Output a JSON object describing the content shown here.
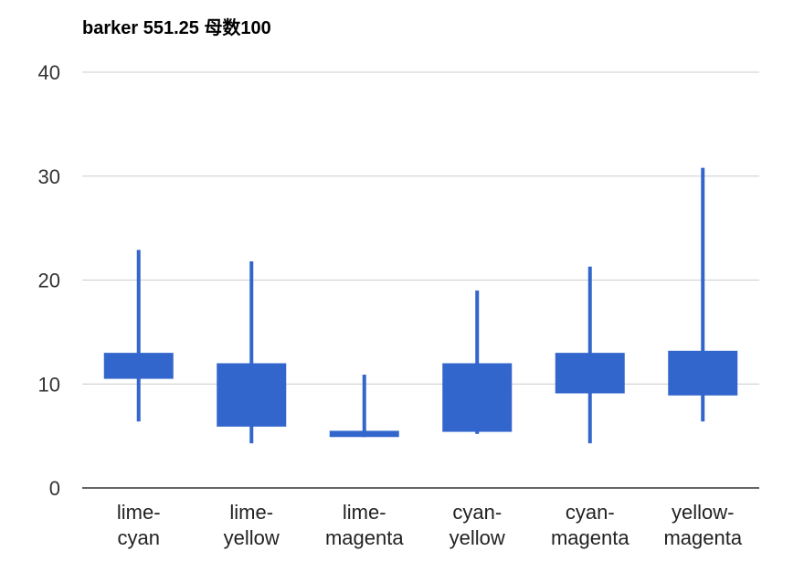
{
  "chart_data": {
    "type": "candlestick",
    "title": "barker 551.25 母数100",
    "xlabel": "",
    "ylabel": "",
    "ylim": [
      0,
      40
    ],
    "yticks": [
      0,
      10,
      20,
      30,
      40
    ],
    "grid": true,
    "legend": "none",
    "color": "#3366cc",
    "categories": [
      [
        "lime-",
        "cyan"
      ],
      [
        "lime-",
        "yellow"
      ],
      [
        "lime-",
        "magenta"
      ],
      [
        "cyan-",
        "yellow"
      ],
      [
        "cyan-",
        "magenta"
      ],
      [
        "yellow-",
        "magenta"
      ]
    ],
    "candles": [
      {
        "low": 6.4,
        "open": 10.5,
        "close": 13.0,
        "high": 22.9
      },
      {
        "low": 4.3,
        "open": 5.9,
        "close": 12.0,
        "high": 21.8
      },
      {
        "low": 4.9,
        "open": 4.9,
        "close": 5.5,
        "high": 10.9
      },
      {
        "low": 5.2,
        "open": 5.4,
        "close": 12.0,
        "high": 19.0
      },
      {
        "low": 4.3,
        "open": 9.1,
        "close": 13.0,
        "high": 21.3
      },
      {
        "low": 6.4,
        "open": 8.9,
        "close": 13.2,
        "high": 30.8
      }
    ]
  }
}
